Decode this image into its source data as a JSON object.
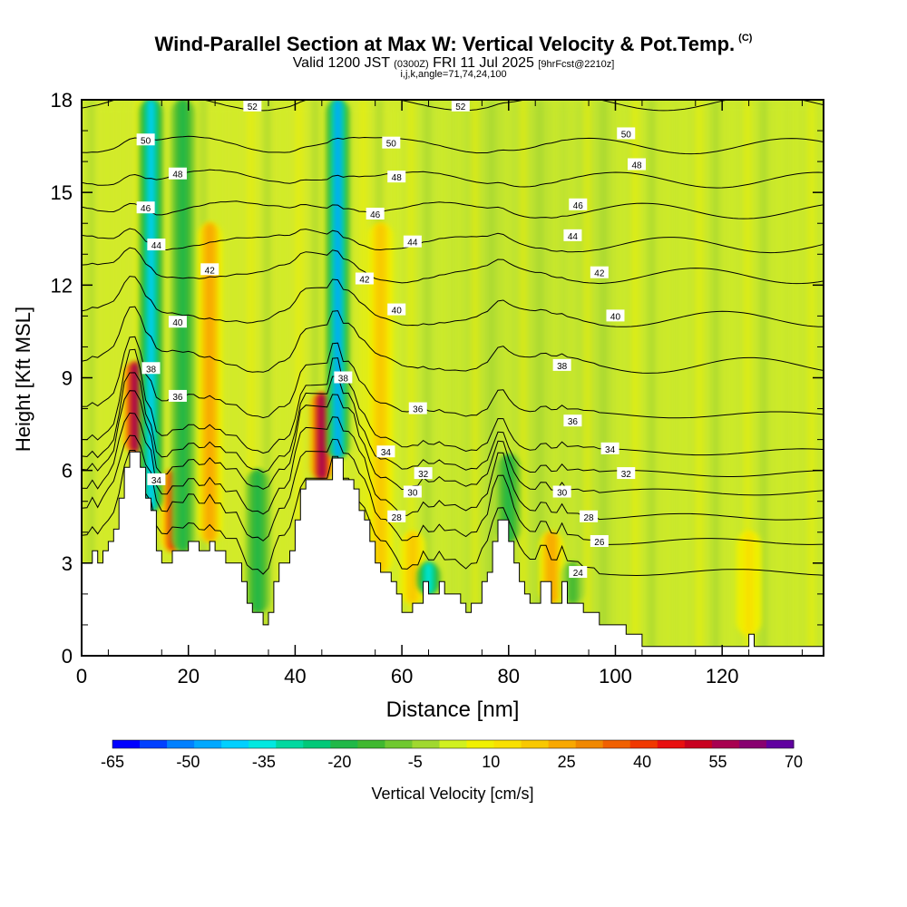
{
  "header": {
    "title": "Wind-Parallel Section at Max W: Vertical Velocity & Pot.Temp.",
    "title_mark": "(C)",
    "subtitle_valid": "Valid 1200 JST",
    "subtitle_utc": "(0300Z)",
    "subtitle_date": "FRI 11 Jul 2025",
    "subtitle_fcst": "[9hrFcst@2210z]",
    "params": "i,j,k,angle=71,74,24,100"
  },
  "chart_data": {
    "type": "heatmap",
    "xlabel": "Distance [nm]",
    "ylabel": "Height [Kft MSL]",
    "xlim": [
      0,
      139
    ],
    "ylim": [
      0,
      18
    ],
    "x_ticks": [
      0,
      20,
      40,
      60,
      80,
      100,
      120
    ],
    "y_ticks": [
      0,
      3,
      6,
      9,
      12,
      15,
      18
    ],
    "colorbar": {
      "label": "Vertical Velocity [cm/s]",
      "tick_labels": [
        -65,
        -50,
        -35,
        -20,
        -5,
        10,
        25,
        40,
        55,
        70
      ],
      "colors": [
        "#0000ff",
        "#0040ff",
        "#0080ff",
        "#00a8ff",
        "#00d0ff",
        "#00e8e0",
        "#00d8a0",
        "#00c878",
        "#20b848",
        "#40b830",
        "#70c830",
        "#a0d830",
        "#d0f020",
        "#f0f000",
        "#f8e000",
        "#f8c800",
        "#f8a800",
        "#f08800",
        "#f06000",
        "#f03800",
        "#e81010",
        "#c80020",
        "#a80050",
        "#880070",
        "#6000a0"
      ]
    },
    "terrain": [
      [
        0,
        3.0
      ],
      [
        2,
        3.0
      ],
      [
        2,
        3.4
      ],
      [
        3,
        3.4
      ],
      [
        3,
        3.0
      ],
      [
        4,
        3.0
      ],
      [
        4,
        3.4
      ],
      [
        5,
        3.4
      ],
      [
        5,
        3.7
      ],
      [
        6,
        3.7
      ],
      [
        6,
        4.1
      ],
      [
        7,
        4.1
      ],
      [
        7,
        5.1
      ],
      [
        8,
        5.1
      ],
      [
        8,
        6.1
      ],
      [
        9,
        6.1
      ],
      [
        9,
        6.6
      ],
      [
        11,
        6.6
      ],
      [
        11,
        6.1
      ],
      [
        12,
        6.1
      ],
      [
        12,
        5.1
      ],
      [
        13,
        5.1
      ],
      [
        13,
        4.7
      ],
      [
        14,
        4.7
      ],
      [
        14,
        3.4
      ],
      [
        15,
        3.4
      ],
      [
        15,
        3.0
      ],
      [
        17,
        3.0
      ],
      [
        17,
        3.4
      ],
      [
        20,
        3.4
      ],
      [
        20,
        3.7
      ],
      [
        22,
        3.7
      ],
      [
        22,
        3.4
      ],
      [
        24,
        3.4
      ],
      [
        24,
        3.7
      ],
      [
        25,
        3.7
      ],
      [
        25,
        3.4
      ],
      [
        27,
        3.4
      ],
      [
        27,
        3.0
      ],
      [
        30,
        3.0
      ],
      [
        30,
        2.4
      ],
      [
        31,
        2.4
      ],
      [
        31,
        1.7
      ],
      [
        32,
        1.7
      ],
      [
        32,
        1.4
      ],
      [
        34,
        1.4
      ],
      [
        34,
        1.0
      ],
      [
        35,
        1.0
      ],
      [
        35,
        1.4
      ],
      [
        36,
        1.4
      ],
      [
        36,
        2.4
      ],
      [
        37,
        2.4
      ],
      [
        37,
        3.0
      ],
      [
        39,
        3.0
      ],
      [
        39,
        3.4
      ],
      [
        40,
        3.4
      ],
      [
        40,
        4.4
      ],
      [
        41,
        4.4
      ],
      [
        41,
        5.4
      ],
      [
        42,
        5.4
      ],
      [
        42,
        5.7
      ],
      [
        47,
        5.7
      ],
      [
        47,
        6.4
      ],
      [
        49,
        6.4
      ],
      [
        49,
        5.7
      ],
      [
        51,
        5.7
      ],
      [
        51,
        5.4
      ],
      [
        52,
        5.4
      ],
      [
        52,
        4.7
      ],
      [
        53,
        4.7
      ],
      [
        53,
        4.4
      ],
      [
        54,
        4.4
      ],
      [
        54,
        3.7
      ],
      [
        55,
        3.7
      ],
      [
        55,
        3.0
      ],
      [
        56,
        3.0
      ],
      [
        56,
        2.7
      ],
      [
        58,
        2.7
      ],
      [
        58,
        2.4
      ],
      [
        59,
        2.4
      ],
      [
        59,
        2.0
      ],
      [
        60,
        2.0
      ],
      [
        60,
        1.4
      ],
      [
        62,
        1.4
      ],
      [
        62,
        1.7
      ],
      [
        64,
        1.7
      ],
      [
        64,
        2.4
      ],
      [
        65,
        2.4
      ],
      [
        65,
        2.0
      ],
      [
        67,
        2.0
      ],
      [
        67,
        2.4
      ],
      [
        68,
        2.4
      ],
      [
        68,
        2.0
      ],
      [
        71,
        2.0
      ],
      [
        71,
        1.7
      ],
      [
        72,
        1.7
      ],
      [
        72,
        1.4
      ],
      [
        73,
        1.4
      ],
      [
        73,
        1.7
      ],
      [
        75,
        1.7
      ],
      [
        75,
        2.4
      ],
      [
        76,
        2.4
      ],
      [
        76,
        2.7
      ],
      [
        77,
        2.7
      ],
      [
        77,
        3.7
      ],
      [
        78,
        3.7
      ],
      [
        78,
        4.4
      ],
      [
        80,
        4.4
      ],
      [
        80,
        3.7
      ],
      [
        81,
        3.7
      ],
      [
        81,
        3.0
      ],
      [
        82,
        3.0
      ],
      [
        82,
        2.4
      ],
      [
        83,
        2.4
      ],
      [
        83,
        2.0
      ],
      [
        84,
        2.0
      ],
      [
        84,
        1.7
      ],
      [
        86,
        1.7
      ],
      [
        86,
        2.4
      ],
      [
        88,
        2.4
      ],
      [
        88,
        1.7
      ],
      [
        90,
        1.7
      ],
      [
        90,
        2.4
      ],
      [
        91,
        2.4
      ],
      [
        91,
        1.7
      ],
      [
        94,
        1.7
      ],
      [
        94,
        1.4
      ],
      [
        97,
        1.4
      ],
      [
        97,
        1.0
      ],
      [
        102,
        1.0
      ],
      [
        102,
        0.7
      ],
      [
        105,
        0.7
      ],
      [
        105,
        0.3
      ],
      [
        125,
        0.3
      ],
      [
        125,
        0.7
      ],
      [
        126,
        0.7
      ],
      [
        126,
        0.3
      ],
      [
        139,
        0.3
      ]
    ],
    "updraft_columns": [
      {
        "x": 10,
        "y_top": 9.5,
        "value": 55
      },
      {
        "x": 17,
        "y_top": 6.0,
        "value": 40
      },
      {
        "x": 24,
        "y_top": 14.0,
        "value": 25
      },
      {
        "x": 45,
        "y_top": 8.5,
        "value": 55
      },
      {
        "x": 56,
        "y_top": 14.0,
        "value": 20
      },
      {
        "x": 62,
        "y_top": 4.0,
        "value": 20
      },
      {
        "x": 88,
        "y_top": 4.0,
        "value": 25
      },
      {
        "x": 125,
        "y_top": 4.0,
        "value": 15
      }
    ],
    "downdraft_columns": [
      {
        "x": 13,
        "y_top": 18,
        "value": -40
      },
      {
        "x": 19,
        "y_top": 18,
        "value": -20
      },
      {
        "x": 33,
        "y_top": 6.0,
        "value": -20
      },
      {
        "x": 48,
        "y_top": 18,
        "value": -45
      },
      {
        "x": 65,
        "y_top": 3.0,
        "value": -35
      },
      {
        "x": 80,
        "y_top": 6.5,
        "value": -20
      },
      {
        "x": 92,
        "y_top": 3.0,
        "value": -15
      }
    ],
    "theta_contours": [
      {
        "label": "24",
        "level_kft": 2.7
      },
      {
        "label": "26",
        "level_kft": 3.7
      },
      {
        "label": "28",
        "level_kft": 4.5
      },
      {
        "label": "30",
        "level_kft": 5.3
      },
      {
        "label": "32",
        "level_kft": 5.9
      },
      {
        "label": "34",
        "level_kft": 6.6
      },
      {
        "label": "36",
        "level_kft": 7.8
      },
      {
        "label": "38",
        "level_kft": 9.4
      },
      {
        "label": "40",
        "level_kft": 10.9
      },
      {
        "label": "42",
        "level_kft": 12.3
      },
      {
        "label": "44",
        "level_kft": 13.3
      },
      {
        "label": "46",
        "level_kft": 14.4
      },
      {
        "label": "48",
        "level_kft": 15.4
      },
      {
        "label": "50",
        "level_kft": 16.5
      },
      {
        "label": "52",
        "level_kft": 17.9
      }
    ],
    "contour_labels": [
      {
        "text": "52",
        "x": 32,
        "y": 17.8
      },
      {
        "text": "52",
        "x": 71,
        "y": 17.8
      },
      {
        "text": "50",
        "x": 12,
        "y": 16.7
      },
      {
        "text": "50",
        "x": 58,
        "y": 16.6
      },
      {
        "text": "50",
        "x": 102,
        "y": 16.9
      },
      {
        "text": "48",
        "x": 18,
        "y": 15.6
      },
      {
        "text": "48",
        "x": 59,
        "y": 15.5
      },
      {
        "text": "48",
        "x": 104,
        "y": 15.9
      },
      {
        "text": "46",
        "x": 12,
        "y": 14.5
      },
      {
        "text": "46",
        "x": 55,
        "y": 14.3
      },
      {
        "text": "46",
        "x": 93,
        "y": 14.6
      },
      {
        "text": "44",
        "x": 14,
        "y": 13.3
      },
      {
        "text": "44",
        "x": 62,
        "y": 13.4
      },
      {
        "text": "44",
        "x": 92,
        "y": 13.6
      },
      {
        "text": "42",
        "x": 24,
        "y": 12.5
      },
      {
        "text": "42",
        "x": 53,
        "y": 12.2
      },
      {
        "text": "42",
        "x": 97,
        "y": 12.4
      },
      {
        "text": "40",
        "x": 18,
        "y": 10.8
      },
      {
        "text": "40",
        "x": 59,
        "y": 11.2
      },
      {
        "text": "40",
        "x": 100,
        "y": 11.0
      },
      {
        "text": "38",
        "x": 13,
        "y": 9.3
      },
      {
        "text": "38",
        "x": 49,
        "y": 9.0
      },
      {
        "text": "38",
        "x": 90,
        "y": 9.4
      },
      {
        "text": "36",
        "x": 18,
        "y": 8.4
      },
      {
        "text": "36",
        "x": 63,
        "y": 8.0
      },
      {
        "text": "36",
        "x": 92,
        "y": 7.6
      },
      {
        "text": "34",
        "x": 57,
        "y": 6.6
      },
      {
        "text": "34",
        "x": 99,
        "y": 6.7
      },
      {
        "text": "34",
        "x": 14,
        "y": 5.7
      },
      {
        "text": "32",
        "x": 64,
        "y": 5.9
      },
      {
        "text": "32",
        "x": 102,
        "y": 5.9
      },
      {
        "text": "30",
        "x": 62,
        "y": 5.3
      },
      {
        "text": "30",
        "x": 90,
        "y": 5.3
      },
      {
        "text": "28",
        "x": 59,
        "y": 4.5
      },
      {
        "text": "28",
        "x": 95,
        "y": 4.5
      },
      {
        "text": "26",
        "x": 97,
        "y": 3.7
      },
      {
        "text": "24",
        "x": 93,
        "y": 2.7
      }
    ]
  }
}
